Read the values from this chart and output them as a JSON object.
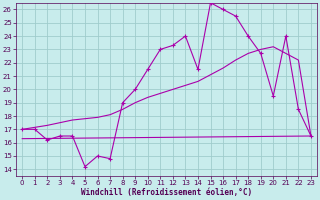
{
  "xlabel": "Windchill (Refroidissement éolien,°C)",
  "bg_color": "#c8ecec",
  "grid_color": "#a0cccc",
  "line_color": "#aa00aa",
  "line_color_dark": "#550055",
  "xlim": [
    -0.5,
    23.5
  ],
  "ylim": [
    13.5,
    26.5
  ],
  "yticks": [
    14,
    15,
    16,
    17,
    18,
    19,
    20,
    21,
    22,
    23,
    24,
    25,
    26
  ],
  "xticks": [
    0,
    1,
    2,
    3,
    4,
    5,
    6,
    7,
    8,
    9,
    10,
    11,
    12,
    13,
    14,
    15,
    16,
    17,
    18,
    19,
    20,
    21,
    22,
    23
  ],
  "curve1_x": [
    0,
    1,
    2,
    3,
    4,
    5,
    6,
    7,
    8,
    9,
    10,
    11,
    12,
    13,
    14,
    15,
    16,
    17,
    18,
    19,
    20,
    21,
    22,
    23
  ],
  "curve1_y": [
    17.0,
    17.0,
    16.2,
    16.5,
    16.5,
    14.2,
    15.0,
    14.8,
    19.0,
    20.0,
    21.5,
    23.0,
    23.3,
    24.0,
    21.5,
    26.5,
    26.0,
    25.5,
    24.0,
    22.7,
    19.5,
    24.0,
    18.5,
    16.5
  ],
  "curve2_x": [
    0,
    2,
    3,
    4,
    5,
    6,
    7,
    8,
    9,
    10,
    11,
    12,
    13,
    14,
    15,
    16,
    17,
    18,
    19,
    20,
    21,
    22,
    23
  ],
  "curve2_y": [
    17.0,
    17.3,
    17.5,
    17.7,
    17.8,
    17.9,
    18.1,
    18.5,
    19.0,
    19.4,
    19.7,
    20.0,
    20.3,
    20.6,
    21.1,
    21.6,
    22.2,
    22.7,
    23.0,
    23.2,
    22.7,
    22.2,
    16.5
  ],
  "curve3_x": [
    0,
    23
  ],
  "curve3_y": [
    16.3,
    16.5
  ],
  "xlabel_fontsize": 5.5,
  "tick_fontsize": 5.0
}
